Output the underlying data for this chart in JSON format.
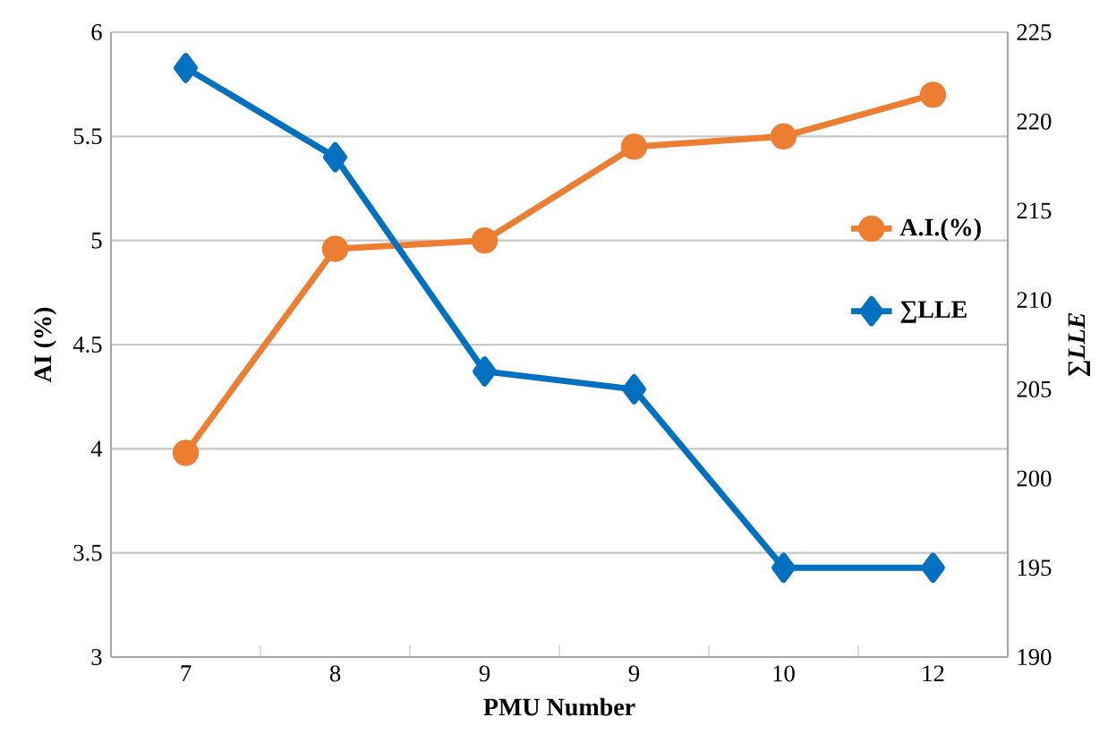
{
  "chart_data": {
    "type": "line",
    "xlabel": "PMU  Number",
    "ylabel": "AI (%)",
    "y2label": "∑*LLE*",
    "categories": [
      "7",
      "8",
      "9",
      "9",
      "10",
      "12"
    ],
    "series": [
      {
        "name": "A.I.(%)",
        "color": "#ed7d31",
        "marker": "circle",
        "values": [
          3.98,
          4.96,
          5.0,
          5.45,
          5.5,
          5.7
        ]
      },
      {
        "name": "∑LLE",
        "color": "#0070c0",
        "marker": "diamond",
        "axis": "y2",
        "values": [
          223,
          218,
          206,
          205,
          195,
          195
        ]
      }
    ],
    "ylim": [
      3,
      6
    ],
    "yticks": [
      3,
      3.5,
      4,
      4.5,
      5,
      5.5,
      6
    ],
    "y2lim": [
      190,
      225
    ],
    "y2ticks": [
      190,
      195,
      200,
      205,
      210,
      215,
      220,
      225
    ],
    "grid": "y",
    "legend": "right",
    "line_style": "solid"
  }
}
